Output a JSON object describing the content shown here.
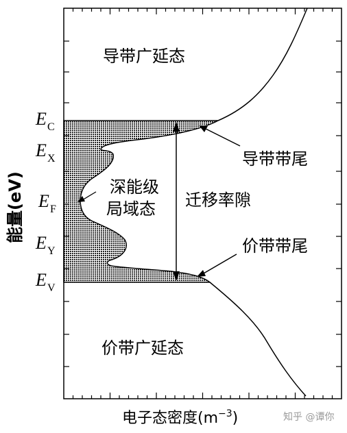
{
  "y_axis_label": "能量(eV)",
  "x_axis_label": "电子态密度(m",
  "x_axis_unit_exponent": "−3",
  "x_axis_unit_close": ")",
  "level_labels": [
    {
      "main": "E",
      "sub": "C"
    },
    {
      "main": "E",
      "sub": "X"
    },
    {
      "main": "E",
      "sub": "F"
    },
    {
      "main": "E",
      "sub": "Y"
    },
    {
      "main": "E",
      "sub": "V"
    }
  ],
  "regions": {
    "conduction_extended": "导带广延态",
    "valence_extended": "价带广延态",
    "deep_localized_line1": "深能级",
    "deep_localized_line2": "局域态",
    "mobility_gap": "迁移率隙",
    "conduction_tail": "导带带尾",
    "valence_tail": "价带带尾"
  },
  "watermark": "知乎 @谭你",
  "colors": {
    "line": "#000000",
    "background": "#ffffff"
  }
}
